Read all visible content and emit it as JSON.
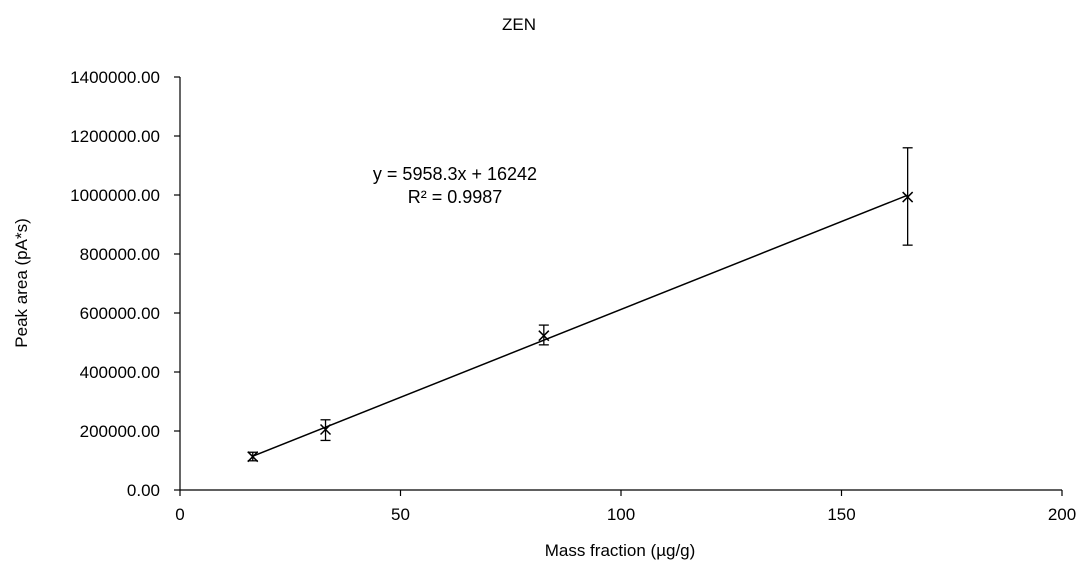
{
  "chart_data": {
    "type": "scatter",
    "title": "ZEN",
    "xlabel": "Mass fraction (µg/g)",
    "ylabel": "Peak area (pA*s)",
    "xlim": [
      0,
      200
    ],
    "ylim": [
      0,
      1400000
    ],
    "x_ticks": [
      0,
      50,
      100,
      150,
      200
    ],
    "y_ticks": [
      0,
      200000,
      400000,
      600000,
      800000,
      1000000,
      1200000,
      1400000
    ],
    "x_tick_labels": [
      "0",
      "50",
      "100",
      "150",
      "200"
    ],
    "y_tick_labels": [
      "0.00",
      "200000.00",
      "400000.00",
      "600000.00",
      "800000.00",
      "1000000.00",
      "1200000.00",
      "1400000.00"
    ],
    "grid": false,
    "marker": "x",
    "series": [
      {
        "points": [
          {
            "x": 16.5,
            "y": 113000,
            "err_low": 99000,
            "err_high": 128000
          },
          {
            "x": 33,
            "y": 205000,
            "err_low": 168000,
            "err_high": 238000
          },
          {
            "x": 82.5,
            "y": 523000,
            "err_low": 492000,
            "err_high": 559000
          },
          {
            "x": 165,
            "y": 993000,
            "err_low": 830000,
            "err_high": 1160000
          }
        ]
      }
    ],
    "trendline": {
      "slope": 5958.3,
      "intercept": 16242,
      "x_range": [
        16.5,
        165
      ]
    },
    "annotations": {
      "equation": "y = 5958.3x + 16242",
      "r_squared": "R² = 0.9987"
    }
  }
}
